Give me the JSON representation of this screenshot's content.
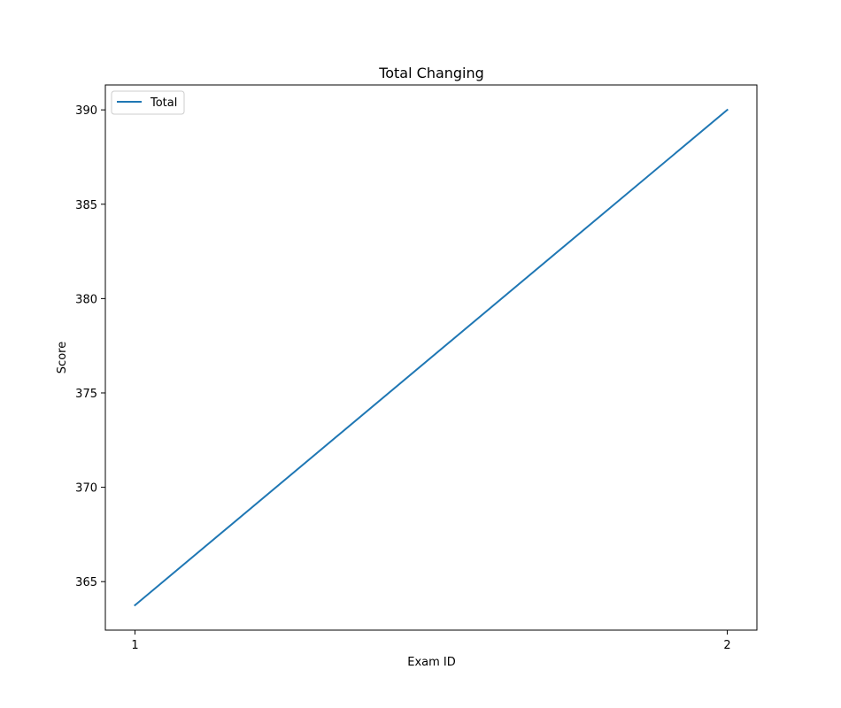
{
  "chart_data": {
    "type": "line",
    "title": "Total Changing",
    "xlabel": "Exam ID",
    "ylabel": "Score",
    "x": [
      1,
      2
    ],
    "x_ticks": [
      "1",
      "2"
    ],
    "y_ticks": [
      365,
      370,
      375,
      380,
      385,
      390
    ],
    "ylim": [
      362.43,
      391.32
    ],
    "xlim": [
      0.95,
      2.05
    ],
    "grid": false,
    "legend_position": "top-left",
    "series": [
      {
        "name": "Total",
        "values": [
          363.75,
          390.0
        ],
        "color": "#1f77b4"
      }
    ]
  }
}
